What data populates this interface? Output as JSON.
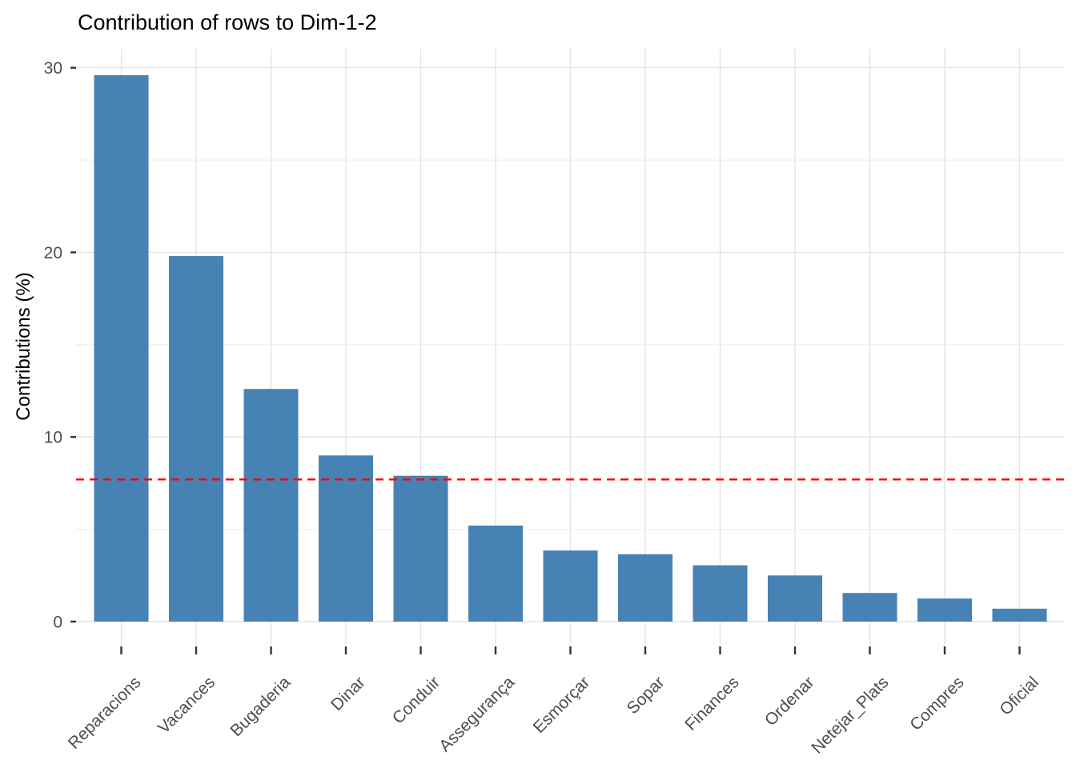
{
  "chart_data": {
    "type": "bar",
    "title": "Contribution of rows to Dim-1-2",
    "xlabel": "",
    "ylabel": "Contributions (%)",
    "categories": [
      "Reparacions",
      "Vacances",
      "Bugaderia",
      "Dinar",
      "Conduir",
      "Assegurança",
      "Esmorçar",
      "Sopar",
      "Finances",
      "Ordenar",
      "Netejar_Plats",
      "Compres",
      "Oficial"
    ],
    "values": [
      29.6,
      19.8,
      12.6,
      9.0,
      7.9,
      5.2,
      3.85,
      3.65,
      3.05,
      2.5,
      1.55,
      1.25,
      0.7
    ],
    "reference_line": 7.7,
    "y_ticks": [
      0,
      10,
      20,
      30
    ],
    "y_minor_ticks": [
      5,
      15,
      25
    ],
    "ylim": [
      -1.3,
      31.0
    ],
    "grid": true,
    "legend": "none",
    "bar_color": "#4682B4",
    "reference_line_color": "#FF0000",
    "grid_major_color": "#e4e4e4",
    "grid_minor_color": "#efefef",
    "tick_color": "#333333",
    "tick_label_color": "#4d4d4d"
  }
}
